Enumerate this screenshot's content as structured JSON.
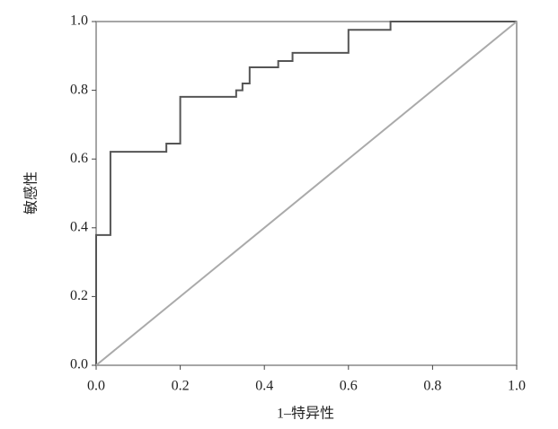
{
  "chart_data": {
    "type": "line",
    "x_label": "1–特异性",
    "y_label": "敏感性",
    "xlim": [
      0,
      1
    ],
    "ylim": [
      0,
      1
    ],
    "xticks": [
      {
        "value": 0,
        "label": "0.0"
      },
      {
        "value": 0.2,
        "label": "0.2"
      },
      {
        "value": 0.4,
        "label": "0.4"
      },
      {
        "value": 0.6,
        "label": "0.6"
      },
      {
        "value": 0.8,
        "label": "0.8"
      },
      {
        "value": 1,
        "label": "1.0"
      }
    ],
    "yticks": [
      {
        "value": 0,
        "label": "0.0"
      },
      {
        "value": 0.2,
        "label": "0.2"
      },
      {
        "value": 0.4,
        "label": "0.4"
      },
      {
        "value": 0.6,
        "label": "0.6"
      },
      {
        "value": 0.8,
        "label": "0.8"
      },
      {
        "value": 1,
        "label": "1.0"
      }
    ],
    "series": [
      {
        "color": "#555555",
        "x": [
          0,
          0,
          0.034,
          0.034,
          0.034,
          0.167,
          0.167,
          0.2,
          0.2,
          0.333,
          0.333,
          0.348,
          0.348,
          0.365,
          0.365,
          0.433,
          0.433,
          0.467,
          0.467,
          0.6,
          0.6,
          0.7,
          0.7,
          1
        ],
        "values": [
          0,
          0.379,
          0.379,
          0.4,
          0.621,
          0.621,
          0.645,
          0.645,
          0.781,
          0.781,
          0.8,
          0.8,
          0.82,
          0.82,
          0.867,
          0.867,
          0.885,
          0.885,
          0.909,
          0.909,
          0.976,
          0.976,
          1,
          1
        ]
      },
      {
        "color": "#aaaaaa",
        "x": [
          0,
          1
        ],
        "values": [
          0,
          1
        ]
      }
    ]
  }
}
